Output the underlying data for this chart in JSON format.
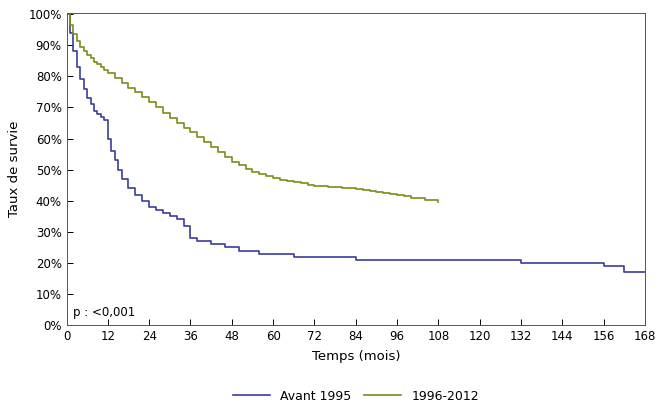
{
  "xlabel": "Temps (mois)",
  "ylabel": "Taux de survie",
  "xlim": [
    0,
    168
  ],
  "ylim": [
    0,
    1.005
  ],
  "xticks": [
    0,
    12,
    24,
    36,
    48,
    60,
    72,
    84,
    96,
    108,
    120,
    132,
    144,
    156,
    168
  ],
  "yticks": [
    0.0,
    0.1,
    0.2,
    0.3,
    0.4,
    0.5,
    0.6,
    0.7,
    0.8,
    0.9,
    1.0
  ],
  "pvalue_text": "p : <0,001",
  "legend_labels": [
    "Avant 1995",
    "1996-2012"
  ],
  "color_avant1995": "#3c3c9e",
  "color_1996_2012": "#7c8c1a",
  "line_width": 1.2,
  "avant1995": {
    "time": [
      0,
      1,
      2,
      3,
      4,
      5,
      6,
      7,
      8,
      9,
      10,
      11,
      12,
      13,
      14,
      15,
      16,
      18,
      20,
      22,
      24,
      26,
      28,
      30,
      32,
      34,
      36,
      38,
      40,
      42,
      44,
      46,
      48,
      50,
      52,
      54,
      56,
      58,
      60,
      66,
      72,
      78,
      84,
      90,
      96,
      102,
      108,
      114,
      120,
      126,
      132,
      138,
      144,
      150,
      156,
      162,
      168
    ],
    "survival": [
      1.0,
      0.94,
      0.88,
      0.83,
      0.79,
      0.76,
      0.73,
      0.71,
      0.69,
      0.68,
      0.67,
      0.66,
      0.6,
      0.56,
      0.53,
      0.5,
      0.47,
      0.44,
      0.42,
      0.4,
      0.38,
      0.37,
      0.36,
      0.35,
      0.34,
      0.32,
      0.28,
      0.27,
      0.27,
      0.26,
      0.26,
      0.25,
      0.25,
      0.24,
      0.24,
      0.24,
      0.23,
      0.23,
      0.23,
      0.22,
      0.22,
      0.22,
      0.21,
      0.21,
      0.21,
      0.21,
      0.21,
      0.21,
      0.21,
      0.21,
      0.2,
      0.2,
      0.2,
      0.2,
      0.19,
      0.17,
      0.17
    ]
  },
  "period1996_2012": {
    "time": [
      0,
      1,
      2,
      3,
      4,
      5,
      6,
      7,
      8,
      9,
      10,
      11,
      12,
      14,
      16,
      18,
      20,
      22,
      24,
      26,
      28,
      30,
      32,
      34,
      36,
      38,
      40,
      42,
      44,
      46,
      48,
      50,
      52,
      54,
      56,
      58,
      60,
      62,
      64,
      66,
      68,
      70,
      72,
      74,
      76,
      78,
      80,
      82,
      84,
      86,
      88,
      90,
      92,
      94,
      96,
      98,
      100,
      104,
      108
    ],
    "survival": [
      1.0,
      0.965,
      0.935,
      0.912,
      0.895,
      0.882,
      0.87,
      0.858,
      0.847,
      0.838,
      0.829,
      0.82,
      0.81,
      0.795,
      0.778,
      0.762,
      0.748,
      0.732,
      0.718,
      0.7,
      0.683,
      0.666,
      0.65,
      0.635,
      0.62,
      0.604,
      0.59,
      0.572,
      0.556,
      0.54,
      0.526,
      0.514,
      0.503,
      0.494,
      0.487,
      0.479,
      0.472,
      0.468,
      0.464,
      0.46,
      0.456,
      0.451,
      0.447,
      0.447,
      0.445,
      0.443,
      0.441,
      0.44,
      0.437,
      0.434,
      0.43,
      0.428,
      0.425,
      0.422,
      0.418,
      0.415,
      0.41,
      0.404,
      0.395
    ]
  }
}
